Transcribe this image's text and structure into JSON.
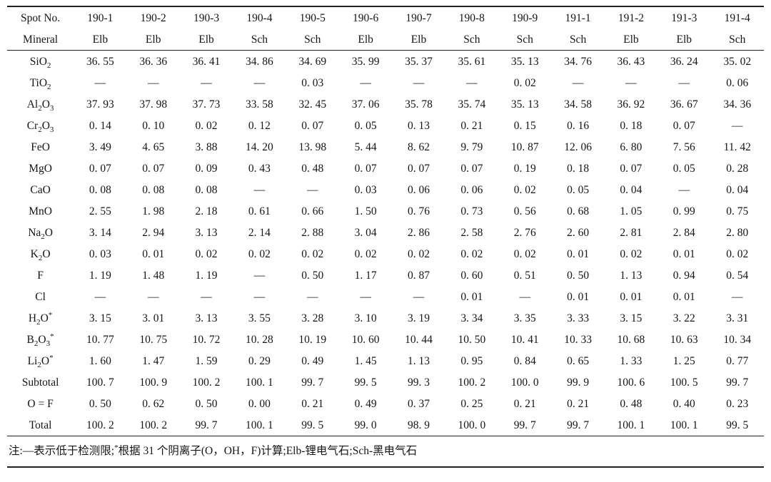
{
  "colors": {
    "background": "#ffffff",
    "text": "#151515",
    "rule": "#1f1f1f"
  },
  "table": {
    "corner": {
      "spot_no": "Spot No.",
      "mineral": "Mineral"
    },
    "spot_numbers": [
      "190-1",
      "190-2",
      "190-3",
      "190-4",
      "190-5",
      "190-6",
      "190-7",
      "190-8",
      "190-9",
      "191-1",
      "191-2",
      "191-3",
      "191-4"
    ],
    "minerals": [
      "Elb",
      "Elb",
      "Elb",
      "Sch",
      "Sch",
      "Elb",
      "Elb",
      "Sch",
      "Sch",
      "Sch",
      "Elb",
      "Elb",
      "Sch"
    ],
    "rows": [
      {
        "name": "SiO2",
        "label": [
          [
            "t",
            "SiO"
          ],
          [
            "sub",
            "2"
          ]
        ],
        "values": [
          "36. 55",
          "36. 36",
          "36. 41",
          "34. 86",
          "34. 69",
          "35. 99",
          "35. 37",
          "35. 61",
          "35. 13",
          "34. 76",
          "36. 43",
          "36. 24",
          "35. 02"
        ]
      },
      {
        "name": "TiO2",
        "label": [
          [
            "t",
            "TiO"
          ],
          [
            "sub",
            "2"
          ]
        ],
        "values": [
          "—",
          "—",
          "—",
          "—",
          "0. 03",
          "—",
          "—",
          "—",
          "0. 02",
          "—",
          "—",
          "—",
          "0. 06"
        ]
      },
      {
        "name": "Al2O3",
        "label": [
          [
            "t",
            "Al"
          ],
          [
            "sub",
            "2"
          ],
          [
            "t",
            "O"
          ],
          [
            "sub",
            "3"
          ]
        ],
        "values": [
          "37. 93",
          "37. 98",
          "37. 73",
          "33. 58",
          "32. 45",
          "37. 06",
          "35. 78",
          "35. 74",
          "35. 13",
          "34. 58",
          "36. 92",
          "36. 67",
          "34. 36"
        ]
      },
      {
        "name": "Cr2O3",
        "label": [
          [
            "t",
            "Cr"
          ],
          [
            "sub",
            "2"
          ],
          [
            "t",
            "O"
          ],
          [
            "sub",
            "3"
          ]
        ],
        "values": [
          "0. 14",
          "0. 10",
          "0. 02",
          "0. 12",
          "0. 07",
          "0. 05",
          "0. 13",
          "0. 21",
          "0. 15",
          "0. 16",
          "0. 18",
          "0. 07",
          "—"
        ]
      },
      {
        "name": "FeO",
        "label": [
          [
            "t",
            "FeO"
          ]
        ],
        "values": [
          "3. 49",
          "4. 65",
          "3. 88",
          "14. 20",
          "13. 98",
          "5. 44",
          "8. 62",
          "9. 79",
          "10. 87",
          "12. 06",
          "6. 80",
          "7. 56",
          "11. 42"
        ]
      },
      {
        "name": "MgO",
        "label": [
          [
            "t",
            "MgO"
          ]
        ],
        "values": [
          "0. 07",
          "0. 07",
          "0. 09",
          "0. 43",
          "0. 48",
          "0. 07",
          "0. 07",
          "0. 07",
          "0. 19",
          "0. 18",
          "0. 07",
          "0. 05",
          "0. 28"
        ]
      },
      {
        "name": "CaO",
        "label": [
          [
            "t",
            "CaO"
          ]
        ],
        "values": [
          "0. 08",
          "0. 08",
          "0. 08",
          "—",
          "—",
          "0. 03",
          "0. 06",
          "0. 06",
          "0. 02",
          "0. 05",
          "0. 04",
          "—",
          "0. 04"
        ]
      },
      {
        "name": "MnO",
        "label": [
          [
            "t",
            "MnO"
          ]
        ],
        "values": [
          "2. 55",
          "1. 98",
          "2. 18",
          "0. 61",
          "0. 66",
          "1. 50",
          "0. 76",
          "0. 73",
          "0. 56",
          "0. 68",
          "1. 05",
          "0. 99",
          "0. 75"
        ]
      },
      {
        "name": "Na2O",
        "label": [
          [
            "t",
            "Na"
          ],
          [
            "sub",
            "2"
          ],
          [
            "t",
            "O"
          ]
        ],
        "values": [
          "3. 14",
          "2. 94",
          "3. 13",
          "2. 14",
          "2. 88",
          "3. 04",
          "2. 86",
          "2. 58",
          "2. 76",
          "2. 60",
          "2. 81",
          "2. 84",
          "2. 80"
        ]
      },
      {
        "name": "K2O",
        "label": [
          [
            "t",
            "K"
          ],
          [
            "sub",
            "2"
          ],
          [
            "t",
            "O"
          ]
        ],
        "values": [
          "0. 03",
          "0. 01",
          "0. 02",
          "0. 02",
          "0. 02",
          "0. 02",
          "0. 02",
          "0. 02",
          "0. 02",
          "0. 01",
          "0. 02",
          "0. 01",
          "0. 02"
        ]
      },
      {
        "name": "F",
        "label": [
          [
            "t",
            "F"
          ]
        ],
        "values": [
          "1. 19",
          "1. 48",
          "1. 19",
          "—",
          "0. 50",
          "1. 17",
          "0. 87",
          "0. 60",
          "0. 51",
          "0. 50",
          "1. 13",
          "0. 94",
          "0. 54"
        ]
      },
      {
        "name": "Cl",
        "label": [
          [
            "t",
            "Cl"
          ]
        ],
        "values": [
          "—",
          "—",
          "—",
          "—",
          "—",
          "—",
          "—",
          "0. 01",
          "—",
          "0. 01",
          "0. 01",
          "0. 01",
          "—"
        ]
      },
      {
        "name": "H2O*",
        "label": [
          [
            "t",
            "H"
          ],
          [
            "sub",
            "2"
          ],
          [
            "t",
            "O"
          ],
          [
            "sup",
            "*"
          ]
        ],
        "values": [
          "3. 15",
          "3. 01",
          "3. 13",
          "3. 55",
          "3. 28",
          "3. 10",
          "3. 19",
          "3. 34",
          "3. 35",
          "3. 33",
          "3. 15",
          "3. 22",
          "3. 31"
        ]
      },
      {
        "name": "B2O3*",
        "label": [
          [
            "t",
            "B"
          ],
          [
            "sub",
            "2"
          ],
          [
            "t",
            "O"
          ],
          [
            "sub",
            "3"
          ],
          [
            "sup",
            "*"
          ]
        ],
        "values": [
          "10. 77",
          "10. 75",
          "10. 72",
          "10. 28",
          "10. 19",
          "10. 60",
          "10. 44",
          "10. 50",
          "10. 41",
          "10. 33",
          "10. 68",
          "10. 63",
          "10. 34"
        ]
      },
      {
        "name": "Li2O*",
        "label": [
          [
            "t",
            "Li"
          ],
          [
            "sub",
            "2"
          ],
          [
            "t",
            "O"
          ],
          [
            "sup",
            "*"
          ]
        ],
        "values": [
          "1. 60",
          "1. 47",
          "1. 59",
          "0. 29",
          "0. 49",
          "1. 45",
          "1. 13",
          "0. 95",
          "0. 84",
          "0. 65",
          "1. 33",
          "1. 25",
          "0. 77"
        ]
      },
      {
        "name": "Subtotal",
        "label": [
          [
            "t",
            "Subtotal"
          ]
        ],
        "values": [
          "100. 7",
          "100. 9",
          "100. 2",
          "100. 1",
          "99. 7",
          "99. 5",
          "99. 3",
          "100. 2",
          "100. 0",
          "99. 9",
          "100. 6",
          "100. 5",
          "99. 7"
        ]
      },
      {
        "name": "O=F",
        "label": [
          [
            "t",
            "O = F"
          ]
        ],
        "values": [
          "0. 50",
          "0. 62",
          "0. 50",
          "0. 00",
          "0. 21",
          "0. 49",
          "0. 37",
          "0. 25",
          "0. 21",
          "0. 21",
          "0. 48",
          "0. 40",
          "0. 23"
        ]
      },
      {
        "name": "Total",
        "label": [
          [
            "t",
            "Total"
          ]
        ],
        "values": [
          "100. 2",
          "100. 2",
          "99. 7",
          "100. 1",
          "99. 5",
          "99. 0",
          "98. 9",
          "100. 0",
          "99. 7",
          "99. 7",
          "100. 1",
          "100. 1",
          "99. 5"
        ]
      }
    ]
  },
  "note": {
    "parts": [
      [
        "t",
        "注:—表示低于检测限;"
      ],
      [
        "sup",
        "*"
      ],
      [
        "t",
        "根据 31 个阴离子(O，OH，F)计算;Elb-锂电气石;Sch-黑电气石"
      ]
    ]
  }
}
